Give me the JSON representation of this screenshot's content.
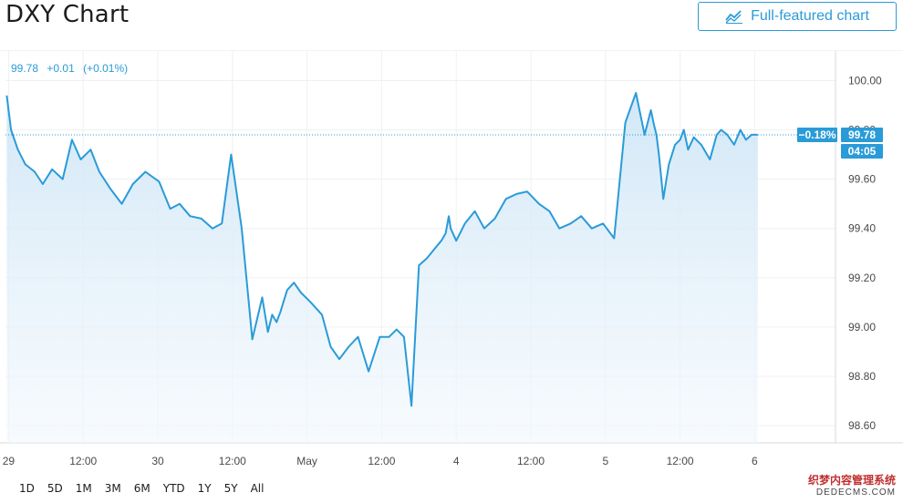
{
  "header": {
    "title": "DXY Chart",
    "full_button_label": "Full-featured chart",
    "full_button_icon": "chart-line-icon"
  },
  "legend": {
    "price": "99.78",
    "change": "+0.01",
    "change_pct": "(+0.01%)"
  },
  "badges": {
    "change_pct": "−0.18%",
    "price": "99.78",
    "countdown": "04:05"
  },
  "range_buttons": [
    "1D",
    "5D",
    "1M",
    "3M",
    "6M",
    "YTD",
    "1Y",
    "5Y",
    "All"
  ],
  "watermark": {
    "line1": "织梦内容管理系统",
    "line2": "DEDECMS.COM"
  },
  "colors": {
    "line": "#2a9bd8",
    "area_top": "#cfe6f6",
    "area_bottom": "#f2f8fd",
    "badge_blue": "#2a9bd8",
    "grid": "#eef0f3"
  },
  "chart_data": {
    "type": "area",
    "title": "DXY Chart",
    "xlabel": "",
    "ylabel": "",
    "ylim": [
      98.53,
      100.12
    ],
    "y_ticks": [
      "100.00",
      "99.80",
      "99.60",
      "99.40",
      "99.20",
      "99.00",
      "98.80",
      "98.60"
    ],
    "y_tick_values": [
      100.0,
      99.8,
      99.6,
      99.4,
      99.2,
      99.0,
      98.8,
      98.6
    ],
    "x_ticks": [
      "29",
      "12:00",
      "30",
      "12:00",
      "May",
      "12:00",
      "4",
      "12:00",
      "5",
      "12:00",
      "6"
    ],
    "x_tick_hours": [
      0,
      12,
      24,
      36,
      48,
      60,
      72,
      84,
      96,
      108,
      120
    ],
    "x_range_hours": [
      -0.5,
      133
    ],
    "last_value": 99.78,
    "series": [
      {
        "values_hours": [
          -0.3,
          0.4,
          1.5,
          2.7,
          4.2,
          5.5,
          7.0,
          8.7,
          10.2,
          11.6,
          13.2,
          14.6,
          16.4,
          18.2,
          20.0,
          22.0,
          24.2,
          26.0,
          27.5,
          29.2,
          31.0,
          32.8,
          34.3,
          35.8,
          37.5,
          39.2,
          40.8,
          41.7,
          42.4,
          43.1,
          43.7,
          44.8,
          45.9,
          47.0,
          48.6,
          50.4,
          51.8,
          53.2,
          54.7,
          56.2,
          57.9,
          59.7,
          61.2,
          62.4,
          63.6,
          64.8,
          66.0,
          67.3,
          68.6,
          69.6,
          70.3,
          70.8,
          71.1,
          72.0,
          73.4,
          75.0,
          76.5,
          78.2,
          80.0,
          81.7,
          83.4,
          85.3,
          87.0,
          88.6,
          90.4,
          92.1,
          93.8,
          95.6,
          97.4,
          99.2,
          100.9,
          102.3,
          103.3,
          103.8,
          104.2,
          104.6,
          105.3,
          106.2,
          107.2,
          108.0,
          108.6,
          109.3,
          110.2,
          111.4,
          112.8,
          113.9,
          114.6,
          115.6,
          116.7,
          117.7,
          118.6,
          119.5,
          120.5
        ],
        "values": [
          99.94,
          99.8,
          99.72,
          99.66,
          99.63,
          99.58,
          99.64,
          99.6,
          99.76,
          99.68,
          99.72,
          99.63,
          99.56,
          99.5,
          99.58,
          99.63,
          99.59,
          99.48,
          99.5,
          99.45,
          99.44,
          99.4,
          99.42,
          99.7,
          99.4,
          98.95,
          99.12,
          98.98,
          99.05,
          99.02,
          99.06,
          99.15,
          99.18,
          99.14,
          99.1,
          99.05,
          98.92,
          98.87,
          98.92,
          98.96,
          98.82,
          98.96,
          98.96,
          98.99,
          98.96,
          98.68,
          99.25,
          99.28,
          99.32,
          99.35,
          99.38,
          99.45,
          99.4,
          99.35,
          99.42,
          99.47,
          99.4,
          99.44,
          99.52,
          99.54,
          99.55,
          99.5,
          99.47,
          99.4,
          99.42,
          99.45,
          99.4,
          99.42,
          99.36,
          99.83,
          99.95,
          99.78,
          99.88,
          99.82,
          99.78,
          99.7,
          99.52,
          99.66,
          99.74,
          99.76,
          99.8,
          99.72,
          99.77,
          99.74,
          99.68,
          99.78,
          99.8,
          99.78,
          99.74,
          99.8,
          99.76,
          99.78,
          99.78
        ]
      }
    ]
  }
}
